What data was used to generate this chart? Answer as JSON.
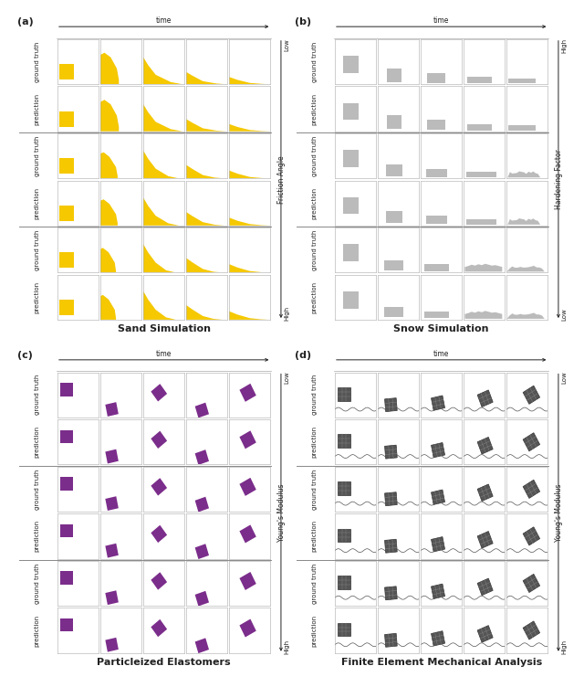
{
  "fig_width": 6.4,
  "fig_height": 7.52,
  "panel_labels": [
    "(a)",
    "(b)",
    "(c)",
    "(d)"
  ],
  "panel_titles": [
    "Sand Simulation",
    "Snow Simulation",
    "Particleized Elastomers",
    "Finite Element Mechanical Analysis"
  ],
  "time_label": "time",
  "sand_color": "#F5C800",
  "snow_color": "#BBBBBB",
  "elasto_color": "#7B2D8B",
  "fem_color": "#555555",
  "bg_color": "#FFFFFF",
  "grid_color": "#AAAAAA",
  "text_color": "#222222",
  "sep_color": "#888888",
  "label_fontsize": 5.5,
  "title_fontsize": 8,
  "panel_label_fontsize": 8
}
